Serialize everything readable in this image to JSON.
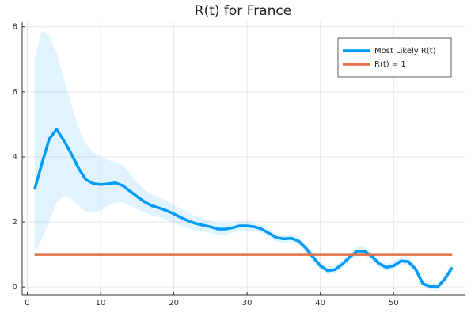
{
  "chart_data": {
    "type": "line",
    "title": "R(t) for France",
    "x": [
      1,
      2,
      3,
      4,
      5,
      6,
      7,
      8,
      9,
      10,
      11,
      12,
      13,
      14,
      15,
      16,
      17,
      18,
      19,
      20,
      21,
      22,
      23,
      24,
      25,
      26,
      27,
      28,
      29,
      30,
      31,
      32,
      33,
      34,
      35,
      36,
      37,
      38,
      39,
      40,
      41,
      42,
      43,
      44,
      45,
      46,
      47,
      48,
      49,
      50,
      51,
      52,
      53,
      54,
      55,
      56,
      57,
      58
    ],
    "series": [
      {
        "name": "Most Likely R(t)",
        "color": "#009af9",
        "values": [
          3.0,
          3.8,
          4.55,
          4.85,
          4.5,
          4.1,
          3.65,
          3.3,
          3.18,
          3.15,
          3.17,
          3.2,
          3.12,
          2.95,
          2.78,
          2.62,
          2.5,
          2.43,
          2.35,
          2.25,
          2.13,
          2.03,
          1.95,
          1.9,
          1.85,
          1.78,
          1.78,
          1.82,
          1.88,
          1.88,
          1.85,
          1.78,
          1.65,
          1.52,
          1.48,
          1.5,
          1.42,
          1.2,
          0.92,
          0.65,
          0.5,
          0.53,
          0.7,
          0.92,
          1.1,
          1.1,
          0.95,
          0.72,
          0.6,
          0.65,
          0.8,
          0.78,
          0.55,
          0.1,
          0.02,
          0.0,
          0.25,
          0.6
        ],
        "band_upper": [
          7.0,
          7.9,
          7.7,
          7.2,
          6.4,
          5.6,
          4.9,
          4.4,
          4.15,
          4.0,
          3.9,
          3.85,
          3.75,
          3.5,
          3.2,
          3.0,
          2.85,
          2.75,
          2.65,
          2.52,
          2.4,
          2.28,
          2.18,
          2.1,
          2.04,
          1.97,
          1.95,
          1.98,
          2.02,
          2.02,
          1.98,
          1.9,
          1.78,
          1.64,
          1.6,
          1.62,
          1.54,
          1.32,
          1.04,
          0.77,
          0.62,
          0.65,
          0.82,
          1.05,
          1.24,
          1.24,
          1.08,
          0.85,
          0.72,
          0.78,
          0.93,
          0.92,
          0.68,
          0.22,
          0.12,
          0.1,
          0.37,
          0.73
        ],
        "band_lower": [
          1.0,
          1.5,
          2.0,
          2.6,
          2.8,
          2.7,
          2.5,
          2.3,
          2.3,
          2.35,
          2.5,
          2.6,
          2.6,
          2.5,
          2.4,
          2.3,
          2.2,
          2.15,
          2.05,
          1.97,
          1.87,
          1.8,
          1.73,
          1.7,
          1.66,
          1.6,
          1.6,
          1.66,
          1.73,
          1.74,
          1.72,
          1.65,
          1.52,
          1.4,
          1.36,
          1.38,
          1.3,
          1.08,
          0.8,
          0.53,
          0.39,
          0.42,
          0.58,
          0.8,
          0.97,
          0.97,
          0.82,
          0.6,
          0.48,
          0.53,
          0.68,
          0.65,
          0.42,
          0.0,
          -0.08,
          -0.1,
          0.13,
          0.47
        ]
      },
      {
        "name": "R(t) = 1",
        "color": "#e26f46",
        "x": [
          1,
          58
        ],
        "values": [
          1,
          1
        ]
      }
    ],
    "xlim": [
      -0.7,
      59.7
    ],
    "xticks": [
      0,
      10,
      20,
      30,
      40,
      50
    ],
    "ylim": [
      -0.24,
      8.14
    ],
    "yticks": [
      0,
      2,
      4,
      6,
      8
    ],
    "grid": true,
    "legend": "top-right"
  }
}
